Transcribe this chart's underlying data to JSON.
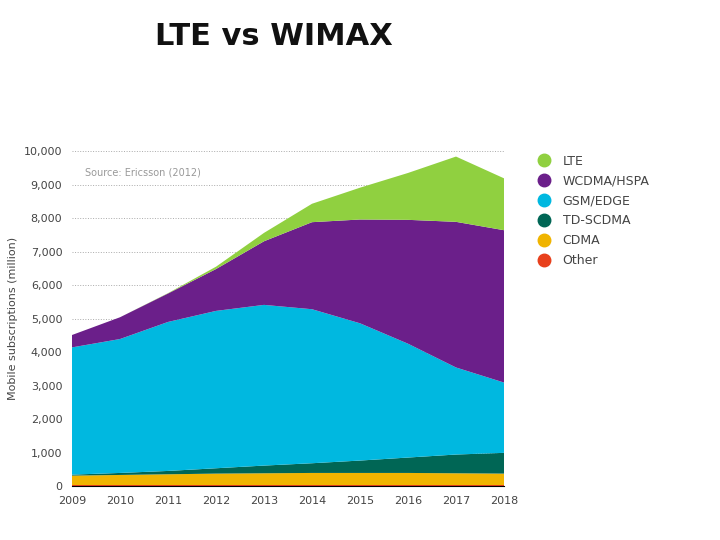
{
  "title": "LTE vs WIMAX",
  "title_fontsize": 22,
  "title_fontweight": "bold",
  "ylabel": "Mobile subscriptions (million)",
  "source_text": "Source: Ericsson (2012)",
  "years": [
    2009,
    2010,
    2011,
    2012,
    2013,
    2014,
    2015,
    2016,
    2017,
    2018
  ],
  "series": {
    "Other": [
      30,
      30,
      30,
      30,
      30,
      30,
      30,
      30,
      30,
      30
    ],
    "CDMA": [
      280,
      300,
      320,
      340,
      350,
      360,
      360,
      360,
      350,
      340
    ],
    "TD-SCDMA": [
      30,
      60,
      100,
      160,
      230,
      290,
      370,
      460,
      560,
      620
    ],
    "GSM/EDGE": [
      3800,
      4000,
      4450,
      4700,
      4800,
      4600,
      4100,
      3400,
      2600,
      2100
    ],
    "WCDMA/HSPA": [
      370,
      650,
      850,
      1250,
      1900,
      2600,
      3100,
      3700,
      4350,
      4550
    ],
    "LTE": [
      0,
      0,
      10,
      70,
      250,
      550,
      950,
      1400,
      1950,
      1550
    ]
  },
  "colors": {
    "Other": "#e8401c",
    "CDMA": "#f0b400",
    "TD-SCDMA": "#006655",
    "GSM/EDGE": "#00b8e0",
    "WCDMA/HSPA": "#6b1f8a",
    "LTE": "#90d040"
  },
  "ylim": [
    0,
    10000
  ],
  "yticks": [
    0,
    1000,
    2000,
    3000,
    4000,
    5000,
    6000,
    7000,
    8000,
    9000,
    10000
  ],
  "background_color": "#ffffff",
  "grid_color": "#aaaaaa",
  "fig_width": 7.2,
  "fig_height": 5.4,
  "dpi": 100
}
